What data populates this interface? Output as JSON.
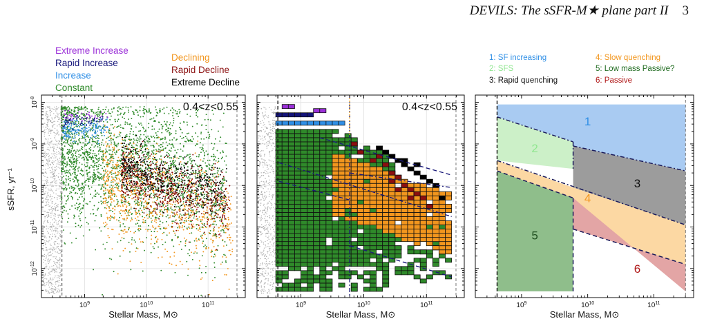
{
  "header": {
    "title": "DEVILS: The sSFR-M★ plane part II",
    "page": "3"
  },
  "colors": {
    "extreme_increase": "#9b30d8",
    "rapid_increase": "#14147a",
    "increase": "#2f8fe6",
    "constant": "#2f8a2a",
    "declining": "#f2961e",
    "rapid_decline": "#8b0f0f",
    "extreme_decline": "#000000",
    "background_points": "#b0b0b0"
  },
  "chart_data": [
    {
      "type": "scatter",
      "panel": "left",
      "annotation": "0.4<z<0.55",
      "xlabel": "Stellar Mass, M⊙",
      "ylabel": "sSFR, yr⁻¹",
      "xscale": "log",
      "yscale": "log",
      "xlim": [
        200000000.0,
        400000000000.0
      ],
      "ylim": [
        2e-13,
        1.5e-08
      ],
      "xticks": [
        "10^9",
        "10^10",
        "10^11"
      ],
      "yticks": [
        "10^-8",
        "10^-9",
        "10^-10",
        "10^-11",
        "10^-12"
      ],
      "mass_limit": 430000000.0,
      "legend": [
        {
          "name": "Extreme Increase",
          "color": "#9b30d8"
        },
        {
          "name": "Rapid Increase",
          "color": "#14147a"
        },
        {
          "name": "Increase",
          "color": "#2f8fe6"
        },
        {
          "name": "Constant",
          "color": "#2f8a2a"
        },
        {
          "name": "Declining",
          "color": "#f2961e"
        },
        {
          "name": "Rapid Decline",
          "color": "#8b0f0f"
        },
        {
          "name": "Extreme Decline",
          "color": "#000000"
        }
      ],
      "series": [
        {
          "name": "Constant",
          "logM_range": [
            8.62,
            11.3
          ],
          "logsSFR_center": -9.6,
          "logsSFR_slope": -0.35,
          "spread": 0.85,
          "n": 2600
        },
        {
          "name": "Declining",
          "logM_range": [
            9.3,
            11.4
          ],
          "logsSFR_center": -10.3,
          "logsSFR_slope": -0.5,
          "spread": 0.6,
          "n": 900
        },
        {
          "name": "Rapid Decline",
          "logM_range": [
            9.6,
            11.35
          ],
          "logsSFR_center": -9.9,
          "logsSFR_slope": -0.45,
          "spread": 0.35,
          "n": 600
        },
        {
          "name": "Extreme Decline",
          "logM_range": [
            9.6,
            11.3
          ],
          "logsSFR_center": -9.75,
          "logsSFR_slope": -0.4,
          "spread": 0.3,
          "n": 500
        },
        {
          "name": "Increase",
          "logM_range": [
            8.65,
            9.4
          ],
          "logsSFR_center": -8.65,
          "logsSFR_slope": 0,
          "spread": 0.12,
          "n": 160
        },
        {
          "name": "Rapid Increase",
          "logM_range": [
            8.65,
            9.3
          ],
          "logsSFR_center": -8.45,
          "logsSFR_slope": 0,
          "spread": 0.08,
          "n": 60
        },
        {
          "name": "Extreme Increase",
          "logM_range": [
            8.68,
            9.4
          ],
          "logsSFR_center": -8.3,
          "logsSFR_slope": 0,
          "spread": 0.07,
          "n": 40
        }
      ]
    },
    {
      "type": "heatmap",
      "panel": "middle",
      "annotation": "0.4<z<0.55",
      "xlabel": "Stellar Mass, M⊙",
      "xscale": "log",
      "yscale": "log",
      "xlim": [
        200000000.0,
        400000000000.0
      ],
      "ylim": [
        2e-13,
        1.5e-08
      ],
      "xticks": [
        "10^9",
        "10^10",
        "10^11"
      ],
      "mass_limit": 430000000.0,
      "mass_split": 6000000000.0,
      "bin_dex": 0.1,
      "cells": {
        "extreme_increase": [
          [
            8.75,
            -8.15
          ],
          [
            8.85,
            -8.15
          ],
          [
            9.25,
            -8.25
          ],
          [
            9.35,
            -8.25
          ]
        ],
        "rapid_increase": [
          [
            8.65,
            -8.35
          ],
          [
            8.75,
            -8.35
          ],
          [
            8.85,
            -8.35
          ],
          [
            8.95,
            -8.35
          ],
          [
            9.05,
            -8.35
          ],
          [
            9.15,
            -8.35
          ]
        ],
        "increase": [
          [
            8.65,
            -8.55
          ],
          [
            8.75,
            -8.55
          ],
          [
            8.85,
            -8.55
          ],
          [
            8.95,
            -8.55
          ],
          [
            9.05,
            -8.55
          ],
          [
            9.15,
            -8.55
          ],
          [
            9.25,
            -8.55
          ],
          [
            9.35,
            -8.55
          ],
          [
            9.45,
            -8.55
          ],
          [
            9.55,
            -8.55
          ],
          [
            9.65,
            -8.55
          ]
        ],
        "rapid_decline": [
          [
            9.85,
            -9.05
          ],
          [
            9.95,
            -9.25
          ],
          [
            10.15,
            -9.45
          ],
          [
            10.25,
            -9.35
          ],
          [
            10.35,
            -9.55
          ],
          [
            10.45,
            -9.75
          ],
          [
            10.55,
            -9.85
          ],
          [
            10.65,
            -10.05
          ],
          [
            10.75,
            -10.15
          ],
          [
            10.85,
            -10.25
          ],
          [
            10.95,
            -10.35
          ],
          [
            11.05,
            -10.55
          ],
          [
            10.45,
            -9.95
          ],
          [
            10.55,
            -10.15
          ],
          [
            10.75,
            -10.35
          ]
        ],
        "extreme_decline": [
          [
            10.25,
            -9.15
          ],
          [
            10.35,
            -9.25
          ],
          [
            10.45,
            -9.35
          ],
          [
            10.55,
            -9.45
          ],
          [
            10.65,
            -9.55
          ],
          [
            10.75,
            -9.65
          ],
          [
            10.85,
            -9.75
          ],
          [
            10.95,
            -9.85
          ],
          [
            11.05,
            -9.95
          ],
          [
            11.15,
            -10.05
          ],
          [
            10.65,
            -9.45
          ],
          [
            10.85,
            -9.55
          ],
          [
            11.25,
            -10.35
          ]
        ],
        "declining_band": {
          "logM_range": [
            9.5,
            11.35
          ],
          "upper_at_10": -9.5,
          "lower_at_10": -10.9,
          "slope": -0.55
        }
      }
    },
    {
      "type": "diagram",
      "panel": "right",
      "xlabel": "Stellar Mass, M⊙",
      "xscale": "log",
      "yscale": "log",
      "xlim": [
        200000000.0,
        400000000000.0
      ],
      "ylim": [
        2e-13,
        1.5e-08
      ],
      "xticks": [
        "10^9",
        "10^10",
        "10^11"
      ],
      "legend": [
        {
          "name": "1: SF increasing",
          "color": "#2f8fe6"
        },
        {
          "name": "2: SFS",
          "color": "#8fe68f"
        },
        {
          "name": "3: Rapid quenching",
          "color": "#111111"
        },
        {
          "name": "4: Slow quenching",
          "color": "#f2961e"
        },
        {
          "name": "5: Low mass Passive?",
          "color": "#1f6b1f"
        },
        {
          "name": "6: Passive",
          "color": "#b01818"
        }
      ],
      "regions": [
        {
          "label": "1",
          "fill": "#a9cbf2",
          "text_color": "#2f8fe6"
        },
        {
          "label": "2",
          "fill": "#ccf0c8",
          "text_color": "#8fe68f"
        },
        {
          "label": "3",
          "fill": "#9c9c9c",
          "text_color": "#111111"
        },
        {
          "label": "4",
          "fill": "#fcd8a3",
          "text_color": "#f2961e"
        },
        {
          "label": "5",
          "fill": "#8fbe8b",
          "text_color": "#1f4f1f"
        },
        {
          "label": "6",
          "fill": "#e3a5a5",
          "text_color": "#b01818"
        }
      ]
    }
  ]
}
